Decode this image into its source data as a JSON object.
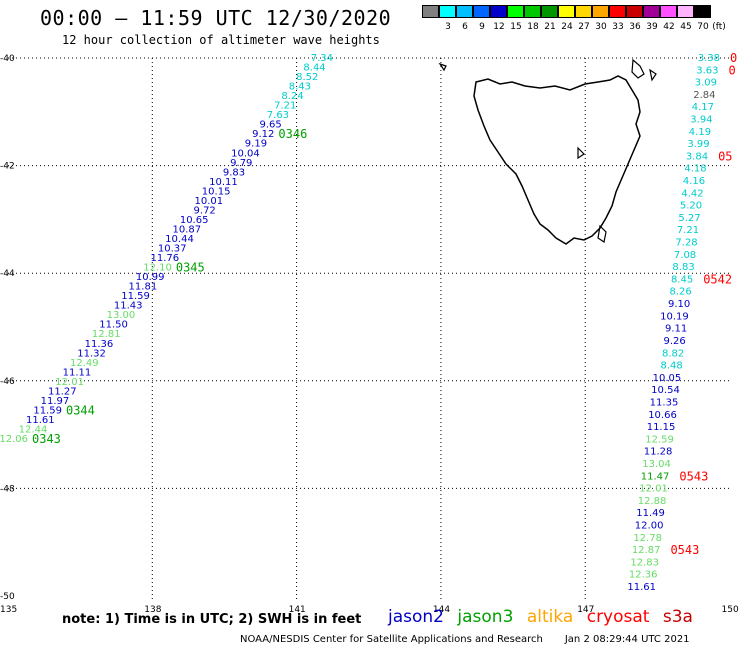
{
  "header": {
    "title": "00:00 — 11:59 UTC 12/30/2020",
    "subtitle": "12 hour collection of altimeter wave heights"
  },
  "colorbar": {
    "unit_label": "(ft)",
    "entries": [
      {
        "label": "",
        "color": "#808080"
      },
      {
        "label": "3",
        "color": "#00ffff"
      },
      {
        "label": "6",
        "color": "#00bfff"
      },
      {
        "label": "9",
        "color": "#0064ff"
      },
      {
        "label": "12",
        "color": "#0000c8"
      },
      {
        "label": "15",
        "color": "#00ff00"
      },
      {
        "label": "18",
        "color": "#00c800"
      },
      {
        "label": "21",
        "color": "#009600"
      },
      {
        "label": "24",
        "color": "#ffff00"
      },
      {
        "label": "27",
        "color": "#ffd700"
      },
      {
        "label": "30",
        "color": "#ffa500"
      },
      {
        "label": "33",
        "color": "#ff0000"
      },
      {
        "label": "36",
        "color": "#c80000"
      },
      {
        "label": "39",
        "color": "#a00096"
      },
      {
        "label": "42",
        "color": "#ff50ff"
      },
      {
        "label": "45",
        "color": "#ffb4ff"
      },
      {
        "label": "70",
        "color": "#000000"
      }
    ]
  },
  "axes": {
    "lat_labels": [
      "-40",
      "-42",
      "-44",
      "-46",
      "-48",
      "-50"
    ],
    "lon_labels": [
      "135",
      "138",
      "141",
      "144",
      "147",
      "150"
    ]
  },
  "colors": {
    "jason2": "#0000c8",
    "jason3": "#00a000",
    "altika": "#ffa500",
    "cryosat": "#ff0000",
    "s3a": "#c80000",
    "cyan": "#00cccc",
    "ltgreen": "#66dd66",
    "gray": "#555555"
  },
  "west_track": {
    "points": [
      {
        "v": "7.34",
        "c": "cyan"
      },
      {
        "v": "8.44",
        "c": "cyan"
      },
      {
        "v": "8.52",
        "c": "cyan"
      },
      {
        "v": "8.43",
        "c": "cyan"
      },
      {
        "v": "8.24",
        "c": "cyan"
      },
      {
        "v": "7.21",
        "c": "cyan"
      },
      {
        "v": "7.63",
        "c": "cyan"
      },
      {
        "v": "9.65",
        "c": "jason2"
      },
      {
        "v": "9.12",
        "c": "jason2"
      },
      {
        "v": "9.19",
        "c": "jason2"
      },
      {
        "v": "10.04",
        "c": "jason2"
      },
      {
        "v": "9.79",
        "c": "jason2"
      },
      {
        "v": "9.83",
        "c": "jason2"
      },
      {
        "v": "10.11",
        "c": "jason2"
      },
      {
        "v": "10.15",
        "c": "jason2"
      },
      {
        "v": "10.01",
        "c": "jason2"
      },
      {
        "v": "9.72",
        "c": "jason2"
      },
      {
        "v": "10.65",
        "c": "jason2"
      },
      {
        "v": "10.87",
        "c": "jason2"
      },
      {
        "v": "10.44",
        "c": "jason2"
      },
      {
        "v": "10.37",
        "c": "jason2"
      },
      {
        "v": "11.76",
        "c": "jason2"
      },
      {
        "v": "12.10",
        "c": "ltgreen"
      },
      {
        "v": "10.99",
        "c": "jason2"
      },
      {
        "v": "11.81",
        "c": "jason2"
      },
      {
        "v": "11.59",
        "c": "jason2"
      },
      {
        "v": "11.43",
        "c": "jason2"
      },
      {
        "v": "13.00",
        "c": "ltgreen"
      },
      {
        "v": "11.50",
        "c": "jason2"
      },
      {
        "v": "12.81",
        "c": "ltgreen"
      },
      {
        "v": "11.36",
        "c": "jason2"
      },
      {
        "v": "11.32",
        "c": "jason2"
      },
      {
        "v": "12.49",
        "c": "ltgreen"
      },
      {
        "v": "11.11",
        "c": "jason2"
      },
      {
        "v": "12.01",
        "c": "ltgreen"
      },
      {
        "v": "11.27",
        "c": "jason2"
      },
      {
        "v": "11.97",
        "c": "jason2"
      },
      {
        "v": "11.59",
        "c": "jason2"
      },
      {
        "v": "11.61",
        "c": "jason2"
      },
      {
        "v": "12.44",
        "c": "ltgreen"
      },
      {
        "v": "12.06",
        "c": "ltgreen"
      }
    ],
    "time_labels": [
      {
        "t": "0346",
        "c": "jason3",
        "idx": 8
      },
      {
        "t": "0345",
        "c": "jason3",
        "idx": 22
      },
      {
        "t": "0344",
        "c": "jason3",
        "idx": 37
      },
      {
        "t": "0343",
        "c": "jason3",
        "idx": 40
      }
    ]
  },
  "east_track": {
    "points": [
      {
        "v": "3.38",
        "c": "cyan"
      },
      {
        "v": "3.63",
        "c": "cyan"
      },
      {
        "v": "3.09",
        "c": "cyan"
      },
      {
        "v": "2.84",
        "c": "gray"
      },
      {
        "v": "4.17",
        "c": "cyan"
      },
      {
        "v": "3.94",
        "c": "cyan"
      },
      {
        "v": "4.19",
        "c": "cyan"
      },
      {
        "v": "3.99",
        "c": "cyan"
      },
      {
        "v": "3.84",
        "c": "cyan"
      },
      {
        "v": "4.18",
        "c": "cyan"
      },
      {
        "v": "4.16",
        "c": "cyan"
      },
      {
        "v": "4.42",
        "c": "cyan"
      },
      {
        "v": "5.20",
        "c": "cyan"
      },
      {
        "v": "5.27",
        "c": "cyan"
      },
      {
        "v": "7.21",
        "c": "cyan"
      },
      {
        "v": "7.28",
        "c": "cyan"
      },
      {
        "v": "7.08",
        "c": "cyan"
      },
      {
        "v": "8.83",
        "c": "cyan"
      },
      {
        "v": "8.45",
        "c": "cyan"
      },
      {
        "v": "8.26",
        "c": "cyan"
      },
      {
        "v": "9.10",
        "c": "jason2"
      },
      {
        "v": "10.19",
        "c": "jason2"
      },
      {
        "v": "9.11",
        "c": "jason2"
      },
      {
        "v": "9.26",
        "c": "jason2"
      },
      {
        "v": "8.82",
        "c": "cyan"
      },
      {
        "v": "8.48",
        "c": "cyan"
      },
      {
        "v": "10.05",
        "c": "jason2"
      },
      {
        "v": "10.54",
        "c": "jason2"
      },
      {
        "v": "11.35",
        "c": "jason2"
      },
      {
        "v": "10.66",
        "c": "jason2"
      },
      {
        "v": "11.15",
        "c": "jason2"
      },
      {
        "v": "12.59",
        "c": "ltgreen"
      },
      {
        "v": "11.28",
        "c": "jason2"
      },
      {
        "v": "13.04",
        "c": "ltgreen"
      },
      {
        "v": "11.47",
        "c": "jason3"
      },
      {
        "v": "12.01",
        "c": "ltgreen"
      },
      {
        "v": "12.88",
        "c": "ltgreen"
      },
      {
        "v": "11.49",
        "c": "jason2"
      },
      {
        "v": "12.00",
        "c": "jason2"
      },
      {
        "v": "12.78",
        "c": "ltgreen"
      },
      {
        "v": "12.87",
        "c": "ltgreen"
      },
      {
        "v": "12.83",
        "c": "ltgreen"
      },
      {
        "v": "12.36",
        "c": "ltgreen"
      },
      {
        "v": "11.61",
        "c": "jason2"
      }
    ],
    "time_labels": [
      {
        "t": "0",
        "c": "cryosat",
        "idx": 0
      },
      {
        "t": "0",
        "c": "cryosat",
        "idx": 1
      },
      {
        "t": "05",
        "c": "cryosat",
        "idx": 8
      },
      {
        "t": "0542",
        "c": "cryosat",
        "idx": 18
      },
      {
        "t": "0543",
        "c": "cryosat",
        "idx": 34
      },
      {
        "t": "0543",
        "c": "cryosat",
        "idx": 40
      }
    ]
  },
  "note": "note: 1) Time is in UTC; 2) SWH is in feet",
  "legend": {
    "jason2": "jason2",
    "jason3": "jason3",
    "altika": "altika",
    "cryosat": "cryosat",
    "s3a": "s3a"
  },
  "footer": {
    "credit": "NOAA/NESDIS Center for Satellite Applications and Research",
    "timestamp": "Jan  2 08:29:44 UTC 2021"
  }
}
